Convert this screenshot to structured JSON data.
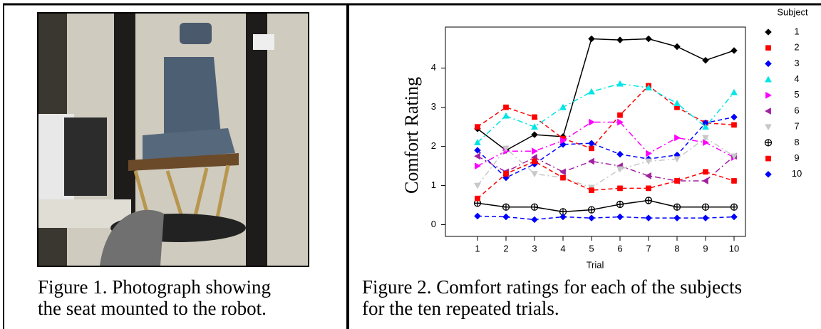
{
  "figure1": {
    "caption": [
      "Figure 1. Photograph showing",
      "the seat mounted to the robot."
    ]
  },
  "figure2": {
    "caption": [
      "Figure 2. Comfort ratings for each of the subjects",
      "for the ten repeated trials."
    ]
  },
  "chart_data": {
    "type": "line",
    "x_label": "Trial",
    "y_label": "Comfort Rating",
    "legend_title": "Subject",
    "x": [
      1,
      2,
      3,
      4,
      5,
      6,
      7,
      8,
      9,
      10
    ],
    "xlim": [
      -0.125,
      10.4
    ],
    "xticks": [
      1,
      2,
      3,
      4,
      5,
      6,
      7,
      8,
      9,
      10
    ],
    "ylim": [
      -0.3,
      5.05
    ],
    "yticks": [
      0,
      1,
      2,
      3,
      4
    ],
    "series": [
      {
        "name": "1",
        "color": "#000000",
        "line_style": "solid",
        "marker": "diamond",
        "values": [
          2.45,
          1.9,
          2.3,
          2.25,
          4.75,
          4.72,
          4.75,
          4.55,
          4.2,
          4.45
        ]
      },
      {
        "name": "2",
        "color": "#ff0000",
        "line_style": "dashed",
        "marker": "square",
        "values": [
          2.5,
          3.0,
          2.75,
          2.2,
          1.95,
          2.8,
          3.55,
          3.0,
          2.6,
          2.55
        ]
      },
      {
        "name": "3",
        "color": "#0000ff",
        "line_style": "dashed",
        "marker": "diamond",
        "values": [
          1.9,
          1.2,
          1.55,
          2.05,
          2.08,
          1.8,
          1.68,
          1.78,
          2.6,
          2.75
        ]
      },
      {
        "name": "4",
        "color": "#00e5e5",
        "line_style": "dashdot",
        "marker": "triangle-up",
        "values": [
          2.1,
          2.78,
          2.5,
          3.0,
          3.4,
          3.6,
          3.5,
          3.1,
          2.5,
          3.38
        ]
      },
      {
        "name": "5",
        "color": "#ff00ff",
        "line_style": "dashdot",
        "marker": "triangle-right",
        "values": [
          1.5,
          1.88,
          1.88,
          2.15,
          2.62,
          2.62,
          1.82,
          2.22,
          2.1,
          1.72
        ]
      },
      {
        "name": "6",
        "color": "#a020a0",
        "line_style": "dashdot",
        "marker": "triangle-left",
        "values": [
          1.75,
          1.35,
          1.72,
          1.35,
          1.62,
          1.5,
          1.25,
          1.12,
          1.12,
          1.75
        ]
      },
      {
        "name": "7",
        "color": "#c8c8c8",
        "line_style": "dashdot",
        "marker": "triangle-down",
        "values": [
          1.0,
          1.95,
          1.3,
          1.2,
          0.95,
          1.42,
          1.62,
          1.68,
          2.22,
          1.75
        ]
      },
      {
        "name": "8",
        "color": "#000000",
        "line_style": "solid",
        "marker": "circle-plus",
        "values": [
          0.55,
          0.45,
          0.45,
          0.33,
          0.38,
          0.52,
          0.62,
          0.45,
          0.45,
          0.45
        ]
      },
      {
        "name": "9",
        "color": "#ff0000",
        "line_style": "dashed",
        "marker": "square",
        "values": [
          0.67,
          1.3,
          1.62,
          1.2,
          0.88,
          0.93,
          0.93,
          1.12,
          1.35,
          1.12
        ]
      },
      {
        "name": "10",
        "color": "#0000ff",
        "line_style": "dashed",
        "marker": "diamond",
        "values": [
          0.22,
          0.2,
          0.13,
          0.2,
          0.17,
          0.2,
          0.17,
          0.17,
          0.17,
          0.2
        ]
      }
    ]
  }
}
